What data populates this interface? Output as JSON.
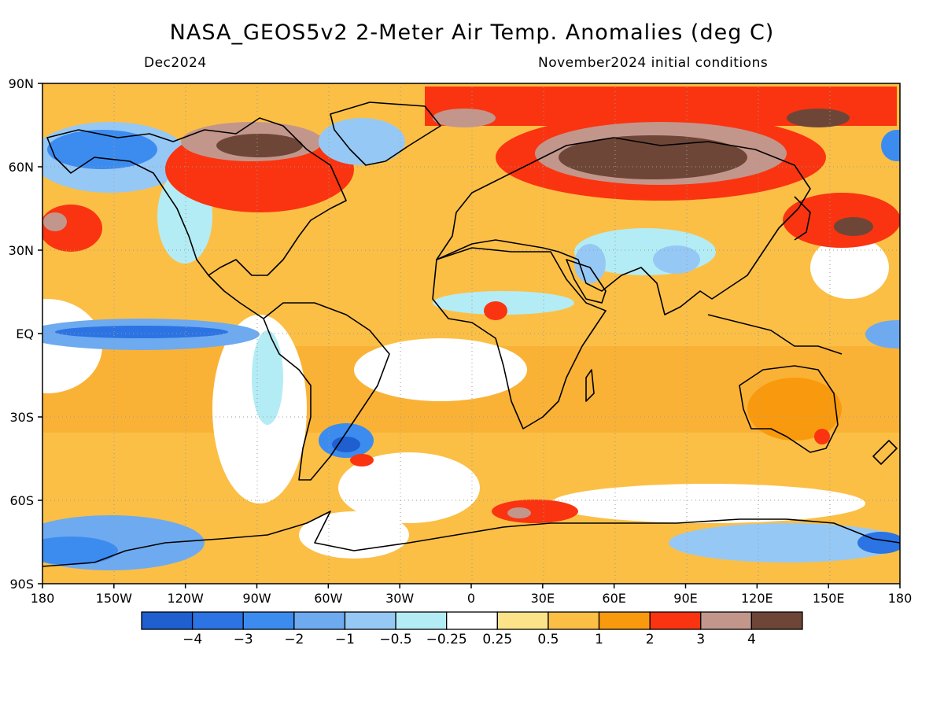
{
  "title": "NASA_GEOS5v2 2-Meter Air Temp. Anomalies (deg C)",
  "subtitle_left": "Dec2024",
  "subtitle_right": "November2024 initial conditions",
  "lat_labels": [
    "90N",
    "60N",
    "30N",
    "EQ",
    "30S",
    "60S",
    "90S"
  ],
  "lon_labels": [
    "180",
    "150W",
    "120W",
    "90W",
    "60W",
    "30W",
    "0",
    "30E",
    "60E",
    "90E",
    "120E",
    "150E",
    "180"
  ],
  "colorbar": {
    "colors": [
      "#1f5fcf",
      "#2c73e3",
      "#3c8cf0",
      "#6eaaf0",
      "#96c8f5",
      "#b4ecf5",
      "#ffffff",
      "#fce38a",
      "#fbbf46",
      "#f99a0e",
      "#fa3410",
      "#c3968c",
      "#6e4638"
    ],
    "labels": [
      "-4",
      "-3",
      "-2",
      "-1",
      "-0.5",
      "-0.25",
      "0.25",
      "0.5",
      "1",
      "2",
      "3",
      "4"
    ]
  }
}
